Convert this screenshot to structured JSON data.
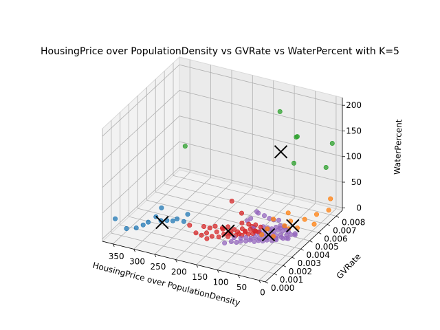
{
  "chart_data": {
    "type": "scatter",
    "projection": "3d",
    "title": "HousingPrice over PopulationDensity vs GVRate vs WaterPercent with K=5",
    "xlabel": "HousingPrice over PopulationDensity",
    "ylabel": "GVRate",
    "zlabel": "WaterPercent",
    "xlim": [
      -15,
      375
    ],
    "ylim": [
      0.0,
      0.0087
    ],
    "zlim": [
      -5,
      215
    ],
    "xticks": [
      "0",
      "50",
      "100",
      "150",
      "200",
      "250",
      "300",
      "350"
    ],
    "xtick_values": [
      0,
      50,
      100,
      150,
      200,
      250,
      300,
      350
    ],
    "yticks": [
      "0.000",
      "0.001",
      "0.002",
      "0.003",
      "0.004",
      "0.005",
      "0.006",
      "0.007",
      "0.008"
    ],
    "ytick_values": [
      0.0,
      0.001,
      0.002,
      0.003,
      0.004,
      0.005,
      0.006,
      0.007,
      0.008
    ],
    "zticks": [
      "0",
      "50",
      "100",
      "150",
      "200"
    ],
    "ztick_values": [
      0,
      50,
      100,
      150,
      200
    ],
    "grid": true,
    "colors": {
      "cluster_1": "#1f77b4",
      "cluster_2": "#ff7f0e",
      "cluster_3": "#2ca02c",
      "cluster_4": "#d62728",
      "cluster_5": "#9467bd",
      "centroid": "#000000"
    },
    "series": [
      {
        "color": "#1f77b4",
        "points": [
          [
            355,
            0.0005,
            35
          ],
          [
            345,
            0.0013,
            5
          ],
          [
            330,
            0.0017,
            3
          ],
          [
            320,
            0.002,
            6
          ],
          [
            312,
            0.0022,
            10
          ],
          [
            300,
            0.0025,
            18
          ],
          [
            293,
            0.0028,
            32
          ],
          [
            286,
            0.0024,
            15
          ],
          [
            280,
            0.0028,
            10
          ],
          [
            270,
            0.003,
            8
          ],
          [
            262,
            0.0031,
            12
          ],
          [
            250,
            0.0033,
            6
          ],
          [
            243,
            0.0034,
            20
          ]
        ]
      },
      {
        "color": "#ff7f0e",
        "points": [
          [
            40,
            0.0035,
            50
          ],
          [
            30,
            0.0047,
            45
          ],
          [
            25,
            0.0055,
            4
          ],
          [
            18,
            0.006,
            14
          ],
          [
            8,
            0.0066,
            -3
          ],
          [
            45,
            0.005,
            12
          ],
          [
            55,
            0.0042,
            2
          ],
          [
            63,
            0.0039,
            20
          ],
          [
            60,
            0.0044,
            -5
          ],
          [
            35,
            0.0052,
            20
          ],
          [
            15,
            0.0072,
            5
          ],
          [
            5,
            0.0081,
            1
          ],
          [
            48,
            0.0056,
            -4
          ],
          [
            70,
            0.0036,
            12
          ],
          [
            5,
            0.0083,
            20
          ]
        ]
      },
      {
        "color": "#2ca02c",
        "points": [
          [
            230,
            0.0025,
            170
          ],
          [
            90,
            0.0066,
            200
          ],
          [
            40,
            0.0062,
            168
          ],
          [
            70,
            0.0075,
            140
          ],
          [
            5,
            0.0085,
            125
          ],
          [
            65,
            0.007,
            98
          ],
          [
            20,
            0.0085,
            75
          ]
        ]
      },
      {
        "color": "#d62728",
        "points": [
          [
            215,
            0.0023,
            22
          ],
          [
            202,
            0.0024,
            8
          ],
          [
            193,
            0.0026,
            2
          ],
          [
            185,
            0.0028,
            5
          ],
          [
            178,
            0.0025,
            0
          ],
          [
            170,
            0.0027,
            3
          ],
          [
            165,
            0.003,
            8
          ],
          [
            158,
            0.0029,
            1
          ],
          [
            150,
            0.0031,
            5
          ],
          [
            146,
            0.0034,
            3
          ],
          [
            140,
            0.0031,
            2
          ],
          [
            135,
            0.0032,
            7
          ],
          [
            128,
            0.0034,
            2
          ],
          [
            122,
            0.0035,
            5
          ],
          [
            118,
            0.0036,
            1
          ],
          [
            112,
            0.0037,
            7
          ],
          [
            106,
            0.0038,
            3
          ],
          [
            100,
            0.004,
            2
          ],
          [
            95,
            0.0041,
            6
          ],
          [
            90,
            0.0042,
            4
          ],
          [
            175,
            0.0033,
            12
          ],
          [
            160,
            0.0034,
            10
          ],
          [
            145,
            0.0036,
            4
          ],
          [
            132,
            0.0038,
            2
          ],
          [
            125,
            0.004,
            6
          ],
          [
            120,
            0.0041,
            1
          ],
          [
            110,
            0.0042,
            5
          ],
          [
            102,
            0.0043,
            2
          ],
          [
            150,
            0.004,
            55
          ],
          [
            135,
            0.0044,
            28
          ],
          [
            128,
            0.0041,
            15
          ],
          [
            118,
            0.0044,
            10
          ],
          [
            200,
            0.0032,
            8
          ],
          [
            190,
            0.0034,
            4
          ],
          [
            165,
            0.0037,
            2
          ],
          [
            155,
            0.0038,
            7
          ],
          [
            142,
            0.0039,
            3
          ],
          [
            115,
            0.0046,
            3
          ],
          [
            108,
            0.0047,
            6
          ],
          [
            98,
            0.0048,
            2
          ]
        ]
      },
      {
        "color": "#9467bd",
        "points": [
          [
            140,
            0.0027,
            -4
          ],
          [
            128,
            0.0029,
            -2
          ],
          [
            120,
            0.0031,
            -5
          ],
          [
            112,
            0.0032,
            -3
          ],
          [
            104,
            0.0034,
            -4
          ],
          [
            96,
            0.0035,
            -2
          ],
          [
            88,
            0.0036,
            -5
          ],
          [
            80,
            0.0037,
            -3
          ],
          [
            72,
            0.0038,
            -4
          ],
          [
            64,
            0.0039,
            -2
          ],
          [
            56,
            0.0041,
            -5
          ],
          [
            48,
            0.0042,
            -3
          ],
          [
            130,
            0.0033,
            -1
          ],
          [
            118,
            0.0035,
            -3
          ],
          [
            108,
            0.0036,
            -1
          ],
          [
            100,
            0.0038,
            -4
          ],
          [
            92,
            0.0039,
            -2
          ],
          [
            84,
            0.004,
            -5
          ],
          [
            76,
            0.0041,
            -1
          ],
          [
            68,
            0.0042,
            -3
          ],
          [
            60,
            0.0043,
            -2
          ],
          [
            52,
            0.0044,
            -4
          ],
          [
            90,
            0.0043,
            -3
          ],
          [
            82,
            0.0044,
            -1
          ],
          [
            74,
            0.0045,
            -4
          ],
          [
            66,
            0.0046,
            -2
          ],
          [
            58,
            0.0047,
            -5
          ],
          [
            50,
            0.0048,
            -3
          ],
          [
            86,
            0.0047,
            0
          ],
          [
            78,
            0.0049,
            -2
          ],
          [
            70,
            0.005,
            -4
          ],
          [
            62,
            0.0051,
            -1
          ],
          [
            54,
            0.0052,
            -3
          ],
          [
            46,
            0.0053,
            -2
          ],
          [
            94,
            0.0045,
            -1
          ],
          [
            102,
            0.0044,
            -3
          ],
          [
            110,
            0.0045,
            2
          ],
          [
            114,
            0.0048,
            -1
          ],
          [
            96,
            0.005,
            0
          ],
          [
            88,
            0.0051,
            -2
          ],
          [
            80,
            0.0052,
            -4
          ],
          [
            72,
            0.0053,
            -1
          ],
          [
            64,
            0.0054,
            -3
          ],
          [
            56,
            0.0055,
            -1
          ],
          [
            68,
            0.0056,
            -2
          ],
          [
            60,
            0.0057,
            -4
          ],
          [
            40,
            0.0052,
            -2
          ],
          [
            44,
            0.0046,
            -4
          ],
          [
            38,
            0.0049,
            -3
          ],
          [
            34,
            0.0047,
            -5
          ],
          [
            30,
            0.005,
            -2
          ],
          [
            26,
            0.0053,
            -4
          ],
          [
            22,
            0.0051,
            -3
          ],
          [
            36,
            0.0044,
            -1
          ],
          [
            28,
            0.0046,
            -3
          ],
          [
            112,
            0.0052,
            20
          ],
          [
            104,
            0.0055,
            12
          ],
          [
            96,
            0.0057,
            5
          ],
          [
            88,
            0.0058,
            2
          ],
          [
            80,
            0.006,
            0
          ],
          [
            126,
            0.005,
            10
          ],
          [
            120,
            0.0054,
            18
          ],
          [
            132,
            0.0049,
            6
          ]
        ]
      }
    ],
    "centroids": [
      [
        285,
        0.0025,
        10
      ],
      [
        92,
        0.0068,
        118
      ],
      [
        148,
        0.0035,
        5
      ],
      [
        75,
        0.0046,
        -5
      ],
      [
        36,
        0.0055,
        6
      ]
    ]
  }
}
